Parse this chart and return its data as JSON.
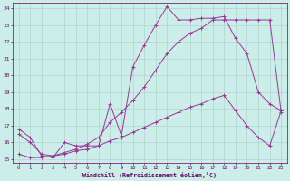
{
  "xlabel": "Windchill (Refroidissement éolien,°C)",
  "xlim": [
    -0.5,
    23.5
  ],
  "ylim": [
    14.8,
    24.3
  ],
  "xticks": [
    0,
    1,
    2,
    3,
    4,
    5,
    6,
    7,
    8,
    9,
    10,
    11,
    12,
    13,
    14,
    15,
    16,
    17,
    18,
    19,
    20,
    21,
    22,
    23
  ],
  "yticks": [
    15,
    16,
    17,
    18,
    19,
    20,
    21,
    22,
    23,
    24
  ],
  "bg_color": "#cceee8",
  "grid_color": "#aacccc",
  "line_color": "#993399",
  "line1_x": [
    0,
    1,
    2,
    3,
    4,
    5,
    6,
    7,
    8,
    9,
    10,
    11,
    12,
    13,
    14,
    15,
    16,
    17,
    18,
    19,
    20,
    21,
    22,
    23
  ],
  "line1_y": [
    16.8,
    16.3,
    15.2,
    15.1,
    16.0,
    15.8,
    15.8,
    15.8,
    18.3,
    16.4,
    20.5,
    21.8,
    23.0,
    24.1,
    23.3,
    23.3,
    23.4,
    23.4,
    23.5,
    22.2,
    21.3,
    19.0,
    18.3,
    17.9
  ],
  "line2_x": [
    0,
    1,
    2,
    3,
    4,
    5,
    6,
    7,
    8,
    9,
    10,
    11,
    12,
    13,
    14,
    15,
    16,
    17,
    18,
    19,
    20,
    21,
    22,
    23
  ],
  "line2_y": [
    16.5,
    16.0,
    15.3,
    15.2,
    15.4,
    15.6,
    15.9,
    16.3,
    17.2,
    17.8,
    18.5,
    19.3,
    20.3,
    21.3,
    22.0,
    22.5,
    22.8,
    23.3,
    23.3,
    23.3,
    23.3,
    23.3,
    23.3,
    17.8
  ],
  "line3_x": [
    0,
    1,
    2,
    3,
    4,
    5,
    6,
    7,
    8,
    9,
    10,
    11,
    12,
    13,
    14,
    15,
    16,
    17,
    18,
    19,
    20,
    21,
    22,
    23
  ],
  "line3_y": [
    15.3,
    15.1,
    15.1,
    15.2,
    15.3,
    15.5,
    15.6,
    15.8,
    16.1,
    16.3,
    16.6,
    16.9,
    17.2,
    17.5,
    17.8,
    18.1,
    18.3,
    18.6,
    18.8,
    17.9,
    17.0,
    16.3,
    15.8,
    17.9
  ]
}
